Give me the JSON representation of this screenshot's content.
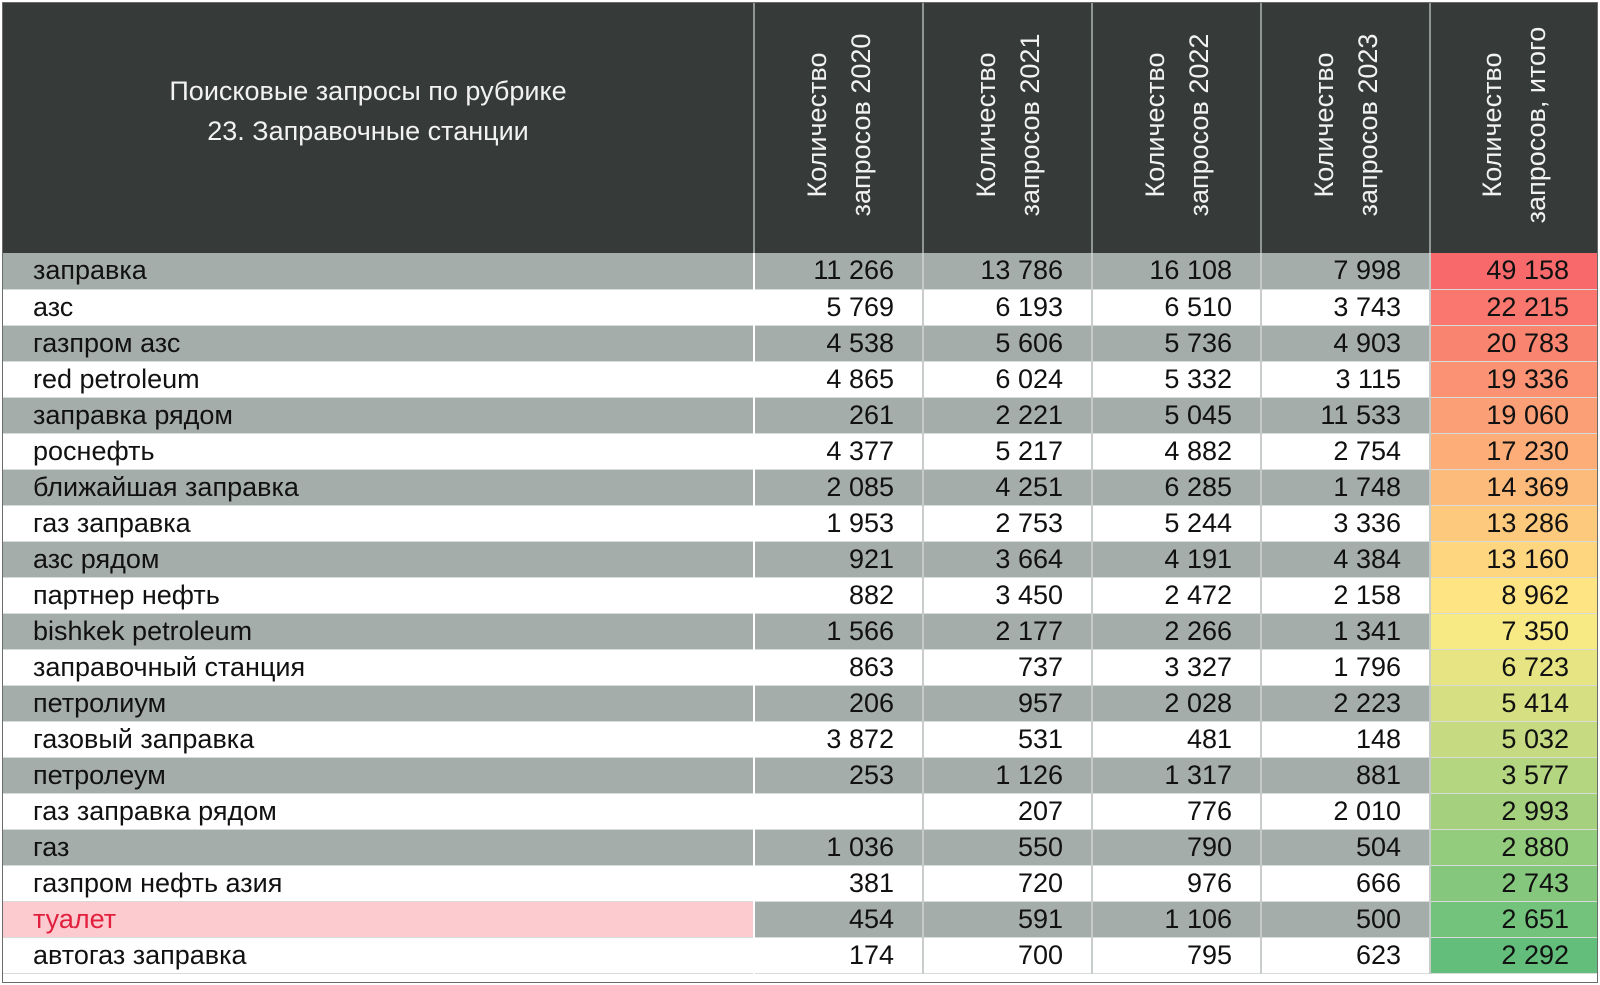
{
  "header": {
    "title_line1": "Поисковые запросы по рубрике",
    "title_line2": "23. Заправочные станции",
    "columns": [
      {
        "line1": "Количество",
        "line2": "запросов 2020"
      },
      {
        "line1": "Количество",
        "line2": "запросов 2021"
      },
      {
        "line1": "Количество",
        "line2": "запросов 2022"
      },
      {
        "line1": "Количество",
        "line2": "запросов 2023"
      },
      {
        "line1": "Количество",
        "line2": "запросов, итого"
      }
    ]
  },
  "colors": {
    "header_bg": "#363a39",
    "stripe": "#a5adaa",
    "highlight_bg": "#fccbd0",
    "highlight_text": "#e2203e",
    "scale_high": "#f8696b",
    "scale_mid": "#ffeb84",
    "scale_low": "#63be7b"
  },
  "chart_data": {
    "type": "table",
    "title": "Поисковые запросы по рубрике 23. Заправочные станции",
    "columns": [
      "Количество запросов 2020",
      "Количество запросов 2021",
      "Количество запросов 2022",
      "Количество запросов 2023",
      "Количество запросов, итого"
    ],
    "rows": [
      {
        "query": "заправка",
        "y2020": "11 266",
        "y2021": "13 786",
        "y2022": "16 108",
        "y2023": "7 998",
        "total": "49 158",
        "total_value": 49158
      },
      {
        "query": "азс",
        "y2020": "5 769",
        "y2021": "6 193",
        "y2022": "6 510",
        "y2023": "3 743",
        "total": "22 215",
        "total_value": 22215
      },
      {
        "query": "газпром азс",
        "y2020": "4 538",
        "y2021": "5 606",
        "y2022": "5 736",
        "y2023": "4 903",
        "total": "20 783",
        "total_value": 20783
      },
      {
        "query": "red petroleum",
        "y2020": "4 865",
        "y2021": "6 024",
        "y2022": "5 332",
        "y2023": "3 115",
        "total": "19 336",
        "total_value": 19336
      },
      {
        "query": "заправка рядом",
        "y2020": "261",
        "y2021": "2 221",
        "y2022": "5 045",
        "y2023": "11 533",
        "total": "19 060",
        "total_value": 19060
      },
      {
        "query": "роснефть",
        "y2020": "4 377",
        "y2021": "5 217",
        "y2022": "4 882",
        "y2023": "2 754",
        "total": "17 230",
        "total_value": 17230
      },
      {
        "query": "ближайшая заправка",
        "y2020": "2 085",
        "y2021": "4 251",
        "y2022": "6 285",
        "y2023": "1 748",
        "total": "14 369",
        "total_value": 14369
      },
      {
        "query": "газ заправка",
        "y2020": "1 953",
        "y2021": "2 753",
        "y2022": "5 244",
        "y2023": "3 336",
        "total": "13 286",
        "total_value": 13286
      },
      {
        "query": "азс рядом",
        "y2020": "921",
        "y2021": "3 664",
        "y2022": "4 191",
        "y2023": "4 384",
        "total": "13 160",
        "total_value": 13160
      },
      {
        "query": "партнер нефть",
        "y2020": "882",
        "y2021": "3 450",
        "y2022": "2 472",
        "y2023": "2 158",
        "total": "8 962",
        "total_value": 8962
      },
      {
        "query": "bishkek petroleum",
        "y2020": "1 566",
        "y2021": "2 177",
        "y2022": "2 266",
        "y2023": "1 341",
        "total": "7 350",
        "total_value": 7350
      },
      {
        "query": "заправочный станция",
        "y2020": "863",
        "y2021": "737",
        "y2022": "3 327",
        "y2023": "1 796",
        "total": "6 723",
        "total_value": 6723
      },
      {
        "query": "петролиум",
        "y2020": "206",
        "y2021": "957",
        "y2022": "2 028",
        "y2023": "2 223",
        "total": "5 414",
        "total_value": 5414
      },
      {
        "query": "газовый заправка",
        "y2020": "3 872",
        "y2021": "531",
        "y2022": "481",
        "y2023": "148",
        "total": "5 032",
        "total_value": 5032
      },
      {
        "query": "петролеум",
        "y2020": "253",
        "y2021": "1 126",
        "y2022": "1 317",
        "y2023": "881",
        "total": "3 577",
        "total_value": 3577
      },
      {
        "query": "газ заправка рядом",
        "y2020": "",
        "y2021": "207",
        "y2022": "776",
        "y2023": "2 010",
        "total": "2 993",
        "total_value": 2993
      },
      {
        "query": "газ",
        "y2020": "1 036",
        "y2021": "550",
        "y2022": "790",
        "y2023": "504",
        "total": "2 880",
        "total_value": 2880
      },
      {
        "query": "газпром нефть азия",
        "y2020": "381",
        "y2021": "720",
        "y2022": "976",
        "y2023": "666",
        "total": "2 743",
        "total_value": 2743
      },
      {
        "query": "туалет",
        "y2020": "454",
        "y2021": "591",
        "y2022": "1 106",
        "y2023": "500",
        "total": "2 651",
        "total_value": 2651,
        "highlight": true
      },
      {
        "query": "автогаз заправка",
        "y2020": "174",
        "y2021": "700",
        "y2022": "795",
        "y2023": "623",
        "total": "2 292",
        "total_value": 2292
      }
    ]
  }
}
